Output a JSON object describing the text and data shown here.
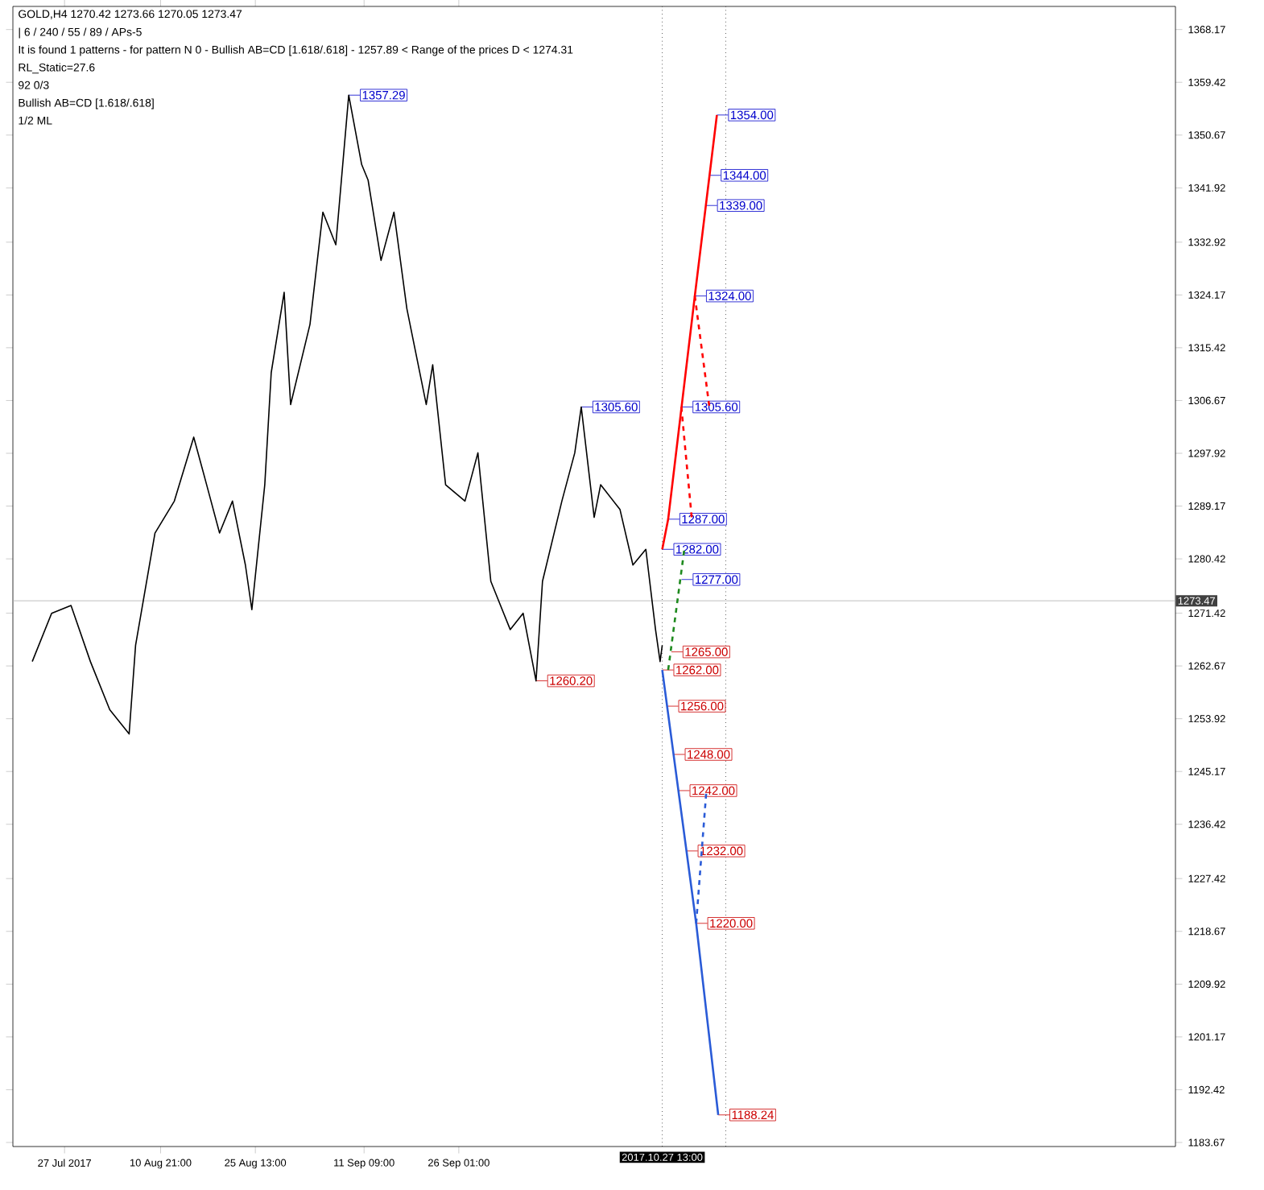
{
  "chart_data": {
    "type": "line",
    "xlim": [
      "2017-07-19",
      "2018-01-15"
    ],
    "ylim": [
      1183,
      1372
    ],
    "xticks": [
      {
        "value": "2017-07-27",
        "label": "27 Jul 2017"
      },
      {
        "value": "2017-08-10T21:00",
        "label": "10 Aug 21:00"
      },
      {
        "value": "2017-08-25T13:00",
        "label": "25 Aug 13:00"
      },
      {
        "value": "2017-09-11T09:00",
        "label": "11 Sep 09:00"
      },
      {
        "value": "2017-09-26T01:00",
        "label": "26 Sep 01:00"
      }
    ],
    "yticks": [
      1368.17,
      1359.42,
      1350.67,
      1341.92,
      1332.92,
      1324.17,
      1315.42,
      1306.67,
      1297.92,
      1289.17,
      1280.42,
      1271.42,
      1262.67,
      1253.92,
      1245.17,
      1236.42,
      1227.42,
      1218.67,
      1209.92,
      1201.17,
      1192.42,
      1183.67
    ],
    "grid": false,
    "series": [
      {
        "color": "#000000",
        "line_style": "solid",
        "x": [
          "2017-07-22",
          "2017-07-25",
          "2017-07-28",
          "2017-07-31",
          "2017-08-03",
          "2017-08-06",
          "2017-08-07",
          "2017-08-10",
          "2017-08-13",
          "2017-08-16",
          "2017-08-18",
          "2017-08-20",
          "2017-08-22",
          "2017-08-24",
          "2017-08-25",
          "2017-08-27",
          "2017-08-28",
          "2017-08-30",
          "2017-08-31",
          "2017-09-03",
          "2017-09-05",
          "2017-09-07",
          "2017-09-09",
          "2017-09-11",
          "2017-09-12",
          "2017-09-14",
          "2017-09-16",
          "2017-09-18",
          "2017-09-21",
          "2017-09-22",
          "2017-09-24",
          "2017-09-27",
          "2017-09-29",
          "2017-10-01",
          "2017-10-04",
          "2017-10-06",
          "2017-10-08",
          "2017-10-09",
          "2017-10-12",
          "2017-10-14",
          "2017-10-15",
          "2017-10-17",
          "2017-10-18",
          "2017-10-21",
          "2017-10-23",
          "2017-10-25",
          "2017-10-26T12:00",
          "2017-10-27T05:00",
          "2017-10-27T13:00"
        ],
        "values": [
          1263.4,
          1271.4,
          1272.7,
          1263.4,
          1255.4,
          1251.4,
          1266.1,
          1284.7,
          1290.0,
          1300.6,
          1292.7,
          1284.7,
          1290.0,
          1279.4,
          1272.0,
          1292.7,
          1311.3,
          1324.6,
          1306.0,
          1319.3,
          1337.9,
          1332.5,
          1357.29,
          1345.8,
          1343.2,
          1329.9,
          1337.9,
          1321.9,
          1306.0,
          1312.6,
          1292.7,
          1290.0,
          1298.0,
          1276.7,
          1268.7,
          1271.4,
          1260.2,
          1276.7,
          1290.0,
          1298.0,
          1305.6,
          1287.3,
          1292.7,
          1288.6,
          1279.4,
          1282.0,
          1268.7,
          1263.4,
          1266.1
        ]
      },
      {
        "color": "#ff0000",
        "line_style": "solid",
        "x": [
          "2017-10-27T13:00",
          "2017-10-28T11:00",
          "2017-11-01T14:00",
          "2017-11-05T00:00"
        ],
        "values": [
          1282,
          1287,
          1324,
          1354
        ]
      },
      {
        "color": "#ff0000",
        "line_style": "dashed",
        "x": [
          "2017-10-30T12:00",
          "2017-11-01T03:00"
        ],
        "values": [
          1305.6,
          1287
        ]
      },
      {
        "color": "#ff0000",
        "line_style": "dashed",
        "x": [
          "2017-11-01T14:00",
          "2017-11-03T20:00"
        ],
        "values": [
          1324,
          1305.6
        ]
      },
      {
        "color": "#2a5bd7",
        "line_style": "solid",
        "x": [
          "2017-10-27T13:00",
          "2017-11-01T19:00",
          "2017-11-05T05:00"
        ],
        "values": [
          1262,
          1220,
          1188.24
        ]
      },
      {
        "color": "#2a5bd7",
        "line_style": "dashed",
        "x": [
          "2017-11-01T19:00",
          "2017-11-03T09:00"
        ],
        "values": [
          1220,
          1242
        ]
      },
      {
        "color": "#1e8a1e",
        "line_style": "dashed",
        "x": [
          "2017-10-28T11:00",
          "2017-10-30T23:00"
        ],
        "values": [
          1262,
          1282
        ]
      }
    ],
    "ref_lines": [
      {
        "axis": "y",
        "value": 1273.47,
        "label": "1273.47",
        "color": "#b0b0b0"
      },
      {
        "axis": "x",
        "value": "2017-10-27T13:00",
        "label": "2017.10.27 13:00",
        "color": "#000000",
        "line_style": "dotted"
      },
      {
        "axis": "x",
        "value": "2017-11-06T09:00",
        "label": null,
        "color": "#000000",
        "line_style": "dotted"
      }
    ],
    "annotations": [
      "GOLD,H4  1270.42 1273.66 1270.05 1273.47",
      "| 6 / 240 / 55 / 89 / APs-5",
      "It is found 1 patterns  -  for pattern N 0 - Bullish AB=CD [1.618/.618] - 1257.89 < Range of the prices D < 1274.31",
      "RL_Static=27.6",
      "92      0/3",
      "Bullish AB=CD [1.618/.618]",
      "1/2 ML",
      {
        "text": "1357.29",
        "x": "2017-09-09",
        "y": 1357.29
      },
      {
        "text": "1305.60",
        "x": "2017-10-15",
        "y": 1305.6
      },
      {
        "text": "1260.20",
        "x": "2017-10-08",
        "y": 1260.2
      },
      {
        "text": "1354.00",
        "x": "2017-11-05T00:00",
        "y": 1354
      },
      {
        "text": "1344.00",
        "x": "2017-11-03T20:40",
        "y": 1344
      },
      {
        "text": "1339.00",
        "x": "2017-11-03T07:00",
        "y": 1339
      },
      {
        "text": "1324.00",
        "x": "2017-11-01T14:00",
        "y": 1324
      },
      {
        "text": "1305.60",
        "x": "2017-10-30T12:00",
        "y": 1305.6
      },
      {
        "text": "1287.00",
        "x": "2017-10-28T11:00",
        "y": 1287
      },
      {
        "text": "1282.00",
        "x": "2017-10-27T13:00",
        "y": 1282
      },
      {
        "text": "1277.00",
        "x": "2017-10-30T12:30",
        "y": 1277
      },
      {
        "text": "1265.00",
        "x": "2017-10-28T23:00",
        "y": 1265
      },
      {
        "text": "1262.00",
        "x": "2017-10-27T13:00",
        "y": 1262
      },
      {
        "text": "1256.00",
        "x": "2017-10-28T07:00",
        "y": 1256
      },
      {
        "text": "1248.00",
        "x": "2017-10-29T07:00",
        "y": 1248
      },
      {
        "text": "1242.00",
        "x": "2017-10-30T01:00",
        "y": 1242
      },
      {
        "text": "1232.00",
        "x": "2017-10-31T07:00",
        "y": 1232
      },
      {
        "text": "1220.00",
        "x": "2017-11-01T19:00",
        "y": 1220
      },
      {
        "text": "1188.24",
        "x": "2017-11-05T05:00",
        "y": 1188.24
      }
    ]
  }
}
